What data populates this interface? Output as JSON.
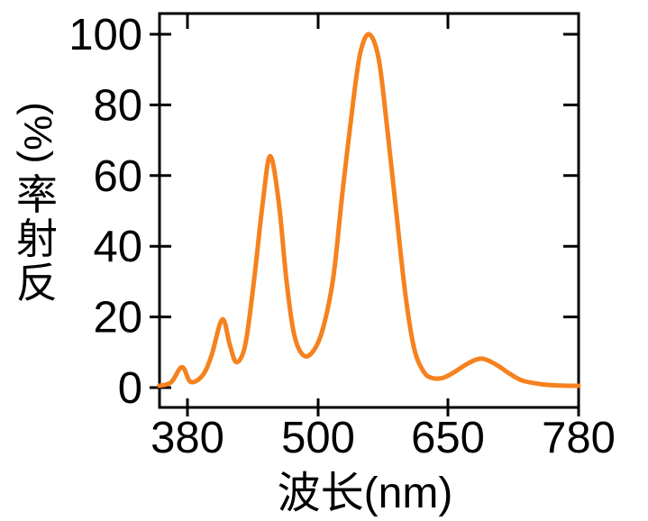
{
  "chart_data": {
    "type": "line",
    "title": "",
    "xlabel": "波长(nm)",
    "ylabel": "反射率(%)",
    "ylabel_vertical": {
      "unit": "(%)",
      "chars": [
        "率",
        "射",
        "反"
      ]
    },
    "x_ticks": [
      380,
      500,
      650,
      780
    ],
    "y_ticks": [
      0,
      20,
      40,
      60,
      80,
      100
    ],
    "xlim": [
      354,
      780
    ],
    "ylim": [
      -6,
      106
    ],
    "grid": false,
    "legend": "none",
    "x_tick_layout": "equal-spacing",
    "axis_color": "#000000",
    "series": [
      {
        "name": "反射率",
        "color": "#F5821F",
        "points": [
          [
            354,
            0.5
          ],
          [
            365,
            1.5
          ],
          [
            375,
            5.8
          ],
          [
            383,
            1.6
          ],
          [
            394,
            3.5
          ],
          [
            402,
            9
          ],
          [
            412,
            19.3
          ],
          [
            419,
            12
          ],
          [
            425,
            7.2
          ],
          [
            433,
            12
          ],
          [
            441,
            30
          ],
          [
            449,
            52
          ],
          [
            456,
            65.5
          ],
          [
            464,
            52
          ],
          [
            471,
            30
          ],
          [
            478,
            15
          ],
          [
            487,
            9
          ],
          [
            497,
            11
          ],
          [
            507,
            18
          ],
          [
            518,
            32
          ],
          [
            528,
            55
          ],
          [
            541,
            82
          ],
          [
            549,
            95
          ],
          [
            559,
            100
          ],
          [
            570,
            93
          ],
          [
            580,
            73
          ],
          [
            591,
            48
          ],
          [
            601,
            26
          ],
          [
            611,
            11
          ],
          [
            622,
            4.5
          ],
          [
            632,
            2.7
          ],
          [
            645,
            2.8
          ],
          [
            657,
            4.5
          ],
          [
            671,
            7
          ],
          [
            684,
            8.2
          ],
          [
            698,
            6.5
          ],
          [
            711,
            4
          ],
          [
            724,
            2
          ],
          [
            742,
            1
          ],
          [
            760,
            0.6
          ],
          [
            780,
            0.5
          ]
        ]
      }
    ],
    "peaks": [
      {
        "wavelength_nm": 375,
        "reflectance_pct": 5.8
      },
      {
        "wavelength_nm": 412,
        "reflectance_pct": 19
      },
      {
        "wavelength_nm": 456,
        "reflectance_pct": 65.5
      },
      {
        "wavelength_nm": 559,
        "reflectance_pct": 100
      },
      {
        "wavelength_nm": 684,
        "reflectance_pct": 8
      }
    ]
  }
}
